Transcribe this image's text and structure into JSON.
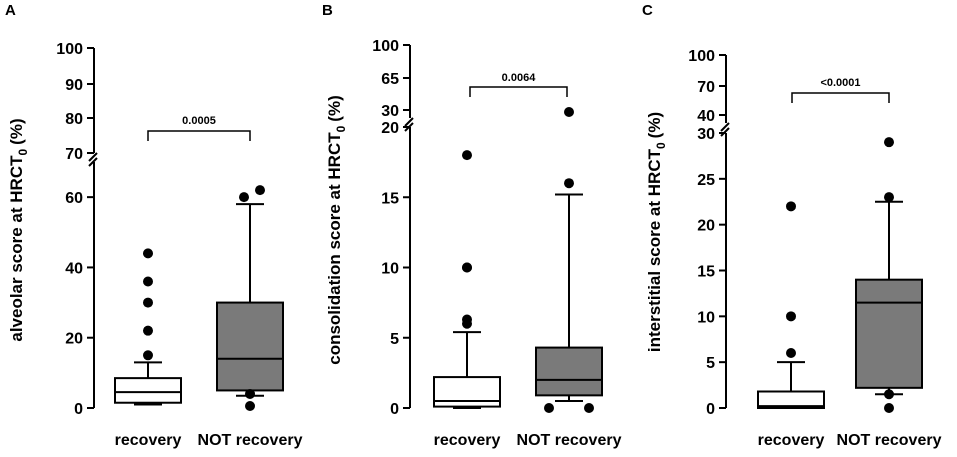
{
  "chart_data": [
    {
      "type": "box",
      "panel": "A",
      "ylabel_main": "alveolar score at HRCT",
      "ylabel_sub": "0",
      "ylabel_unit": "(%)",
      "categories": [
        "recovery",
        "NOT recovery"
      ],
      "y_ranges": {
        "lower": [
          0,
          70
        ],
        "upper": [
          70,
          100
        ]
      },
      "ticks_lower": [
        0,
        20,
        40,
        60
      ],
      "ticks_upper": [
        70,
        80,
        90,
        100
      ],
      "p_value": "0.0005",
      "boxes": [
        {
          "group": "recovery",
          "whisker_low": 1,
          "q1": 1.5,
          "median": 4.5,
          "q3": 8.5,
          "whisker_high": 13,
          "fill": "#ffffff",
          "outliers": [
            15,
            22,
            30,
            36,
            44
          ]
        },
        {
          "group": "NOT recovery",
          "whisker_low": 3.5,
          "q1": 5,
          "median": 14,
          "q3": 30,
          "whisker_high": 58,
          "fill": "#7a7a7a",
          "outliers": [
            0,
            4,
            60,
            62
          ]
        }
      ]
    },
    {
      "type": "box",
      "panel": "B",
      "ylabel_main": "consolidation score at HRCT",
      "ylabel_sub": "0",
      "ylabel_unit": "(%)",
      "categories": [
        "recovery",
        "NOT recovery"
      ],
      "y_ranges": {
        "lower": [
          0,
          20
        ],
        "upper": [
          20,
          100
        ]
      },
      "ticks_lower": [
        0,
        5,
        10,
        15,
        20
      ],
      "ticks_upper": [
        30,
        65,
        100
      ],
      "p_value": "0.0064",
      "boxes": [
        {
          "group": "recovery",
          "whisker_low": 0,
          "q1": 0.1,
          "median": 0.5,
          "q3": 2.2,
          "whisker_high": 5.4,
          "fill": "#ffffff",
          "outliers": [
            6,
            6.3,
            10,
            10,
            18
          ]
        },
        {
          "group": "NOT recovery",
          "whisker_low": 0.5,
          "q1": 0.9,
          "median": 2,
          "q3": 4.3,
          "whisker_high": 15.2,
          "fill": "#7a7a7a",
          "outliers": [
            0,
            0,
            16,
            28
          ]
        }
      ]
    },
    {
      "type": "box",
      "panel": "C",
      "ylabel_main": "interstitial score at HRCT",
      "ylabel_sub": "0",
      "ylabel_unit": "(%)",
      "categories": [
        "recovery",
        "NOT recovery"
      ],
      "y_ranges": {
        "lower": [
          0,
          30
        ],
        "upper": [
          30,
          100
        ]
      },
      "ticks_lower": [
        0,
        5,
        10,
        15,
        20,
        25,
        30
      ],
      "ticks_upper": [
        40,
        70,
        100
      ],
      "p_value": "<0.0001",
      "boxes": [
        {
          "group": "recovery",
          "whisker_low": 0,
          "q1": 0,
          "median": 0.2,
          "q3": 1.8,
          "whisker_high": 5,
          "fill": "#ffffff",
          "outliers": [
            6,
            10,
            22
          ]
        },
        {
          "group": "NOT recovery",
          "whisker_low": 1.5,
          "q1": 2.2,
          "median": 11.5,
          "q3": 14,
          "whisker_high": 22.5,
          "fill": "#7a7a7a",
          "outliers": [
            0,
            1.5,
            23,
            29
          ]
        }
      ]
    }
  ]
}
